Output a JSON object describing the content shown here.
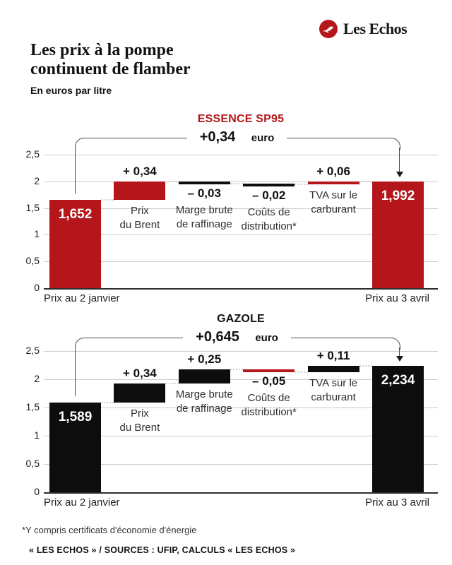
{
  "header": {
    "brand": "Les Echos",
    "title": "Les prix à la pompe\ncontinuent de flamber",
    "subtitle": "En euros par litre"
  },
  "footer": {
    "footnote": "*Y compris certificats d'économie d'énergie",
    "source": "« LES ECHOS » / SOURCES : UFIP, CALCULS  « LES ECHOS »"
  },
  "colors": {
    "brand_red": "#b5161b",
    "bar_black": "#0d0d0d",
    "grid": "#cbcbcb",
    "zero_line": "#2e2e2e"
  },
  "chart_data": [
    {
      "type": "bar",
      "subtype": "waterfall",
      "title": "ESSENCE SP95",
      "title_color": "#b5161b",
      "bracket_total": "+0,34",
      "bracket_unit": "euro",
      "ylim": [
        0,
        2.5
      ],
      "y_ticks": [
        {
          "value": 2.5,
          "label": "2,5"
        },
        {
          "value": 2.0,
          "label": "2"
        },
        {
          "value": 1.5,
          "label": "1,5"
        },
        {
          "value": 1.0,
          "label": "1"
        },
        {
          "value": 0.5,
          "label": "0,5"
        },
        {
          "value": 0.0,
          "label": "0"
        }
      ],
      "positive_color": "#b5161b",
      "negative_color": "#0d0d0d",
      "bars": [
        {
          "kind": "total",
          "value": 1.652,
          "value_label": "1,652",
          "axis_label": "Prix au 2 janvier"
        },
        {
          "kind": "delta",
          "value": 0.34,
          "value_label": "+ 0,34",
          "name": "Prix\ndu Brent"
        },
        {
          "kind": "delta",
          "value": -0.03,
          "value_label": "– 0,03",
          "name": "Marge brute\nde raffinage"
        },
        {
          "kind": "delta",
          "value": -0.02,
          "value_label": "– 0,02",
          "name": "Coûts de\ndistribution*"
        },
        {
          "kind": "delta",
          "value": 0.06,
          "value_label": "+ 0,06",
          "name": "TVA sur le\ncarburant"
        },
        {
          "kind": "total",
          "value": 1.992,
          "value_label": "1,992",
          "axis_label": "Prix au 3 avril"
        }
      ]
    },
    {
      "type": "bar",
      "subtype": "waterfall",
      "title": "GAZOLE",
      "title_color": "#111111",
      "bracket_total": "+0,645",
      "bracket_unit": "euro",
      "ylim": [
        0,
        2.5
      ],
      "y_ticks": [
        {
          "value": 2.5,
          "label": "2,5"
        },
        {
          "value": 2.0,
          "label": "2"
        },
        {
          "value": 1.5,
          "label": "1,5"
        },
        {
          "value": 1.0,
          "label": "1"
        },
        {
          "value": 0.5,
          "label": "0,5"
        },
        {
          "value": 0.0,
          "label": "0"
        }
      ],
      "positive_color": "#0d0d0d",
      "negative_color": "#b5161b",
      "bars": [
        {
          "kind": "total",
          "value": 1.589,
          "value_label": "1,589",
          "axis_label": "Prix au 2 janvier"
        },
        {
          "kind": "delta",
          "value": 0.34,
          "value_label": "+ 0,34",
          "name": "Prix\ndu Brent"
        },
        {
          "kind": "delta",
          "value": 0.25,
          "value_label": "+ 0,25",
          "name": "Marge brute\nde raffinage"
        },
        {
          "kind": "delta",
          "value": -0.05,
          "value_label": "– 0,05",
          "name": "Coûts de\ndistribution*"
        },
        {
          "kind": "delta",
          "value": 0.11,
          "value_label": "+ 0,11",
          "name": "TVA sur le\ncarburant"
        },
        {
          "kind": "total",
          "value": 2.234,
          "value_label": "2,234",
          "axis_label": "Prix au 3 avril"
        }
      ]
    }
  ]
}
